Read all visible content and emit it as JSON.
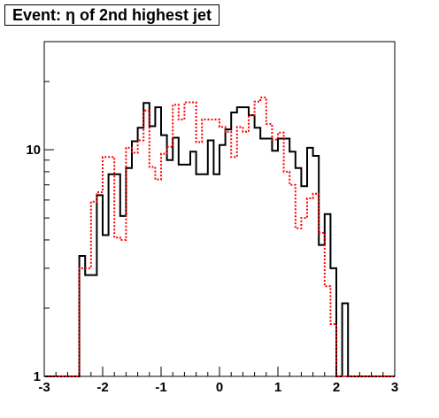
{
  "chart_data": {
    "type": "step-histogram",
    "title": "Event: η of 2nd highest jet",
    "xlabel": "",
    "ylabel": "",
    "xlim": [
      -3,
      3
    ],
    "ylim": [
      1,
      30
    ],
    "yscale": "log",
    "grid": false,
    "x_ticks": [
      -3,
      -2,
      -1,
      0,
      1,
      2,
      3
    ],
    "x_tick_labels": [
      "-3",
      "-2",
      "-1",
      "0",
      "1",
      "2",
      "3"
    ],
    "y_ticks": [
      1,
      10
    ],
    "y_tick_labels": [
      "1",
      "10"
    ],
    "bin_edges": [
      -3.0,
      -2.4,
      -2.3,
      -2.2,
      -2.1,
      -2.0,
      -1.9,
      -1.8,
      -1.7,
      -1.6,
      -1.5,
      -1.4,
      -1.3,
      -1.2,
      -1.1,
      -1.0,
      -0.9,
      -0.8,
      -0.7,
      -0.6,
      -0.5,
      -0.4,
      -0.3,
      -0.2,
      -0.1,
      0.0,
      0.1,
      0.2,
      0.3,
      0.4,
      0.5,
      0.6,
      0.7,
      0.8,
      0.9,
      1.0,
      1.1,
      1.2,
      1.3,
      1.4,
      1.5,
      1.6,
      1.7,
      1.8,
      1.9,
      2.0,
      2.1,
      2.2,
      2.3,
      2.4,
      3.0
    ],
    "series": [
      {
        "color": "#000000",
        "style": "solid",
        "values": [
          1,
          3.4,
          2.8,
          2.8,
          6.3,
          4.2,
          7.8,
          7.8,
          5.1,
          8.3,
          10.9,
          12.5,
          16.1,
          12.7,
          15.4,
          11.6,
          9.0,
          11.3,
          8.6,
          8.6,
          9.8,
          7.8,
          7.8,
          11.0,
          7.8,
          10.5,
          12.3,
          14.6,
          15.4,
          15.4,
          14.2,
          12.5,
          11.2,
          11.2,
          9.9,
          11.2,
          11.2,
          9.8,
          8.3,
          6.9,
          10.2,
          9.4,
          3.8,
          5.2,
          3.0,
          1.0,
          2.1,
          1.0,
          1.0,
          1.0
        ]
      },
      {
        "color": "#ff0000",
        "style": "dotted",
        "values": [
          1,
          3.0,
          3.0,
          5.9,
          6.5,
          9.3,
          9.3,
          4.1,
          4.0,
          10.2,
          9.7,
          11.0,
          14.9,
          8.4,
          7.4,
          9.6,
          10.3,
          15.8,
          13.6,
          16.2,
          16.2,
          10.8,
          13.6,
          13.6,
          13.6,
          12.6,
          12.0,
          9.3,
          12.6,
          12.0,
          14.2,
          16.3,
          17.0,
          13.0,
          11.1,
          11.9,
          8.0,
          7.0,
          4.5,
          5.0,
          6.1,
          6.4,
          4.3,
          2.5,
          1.7,
          1.0,
          1.0,
          1.0,
          1.0,
          1.0
        ]
      }
    ]
  }
}
